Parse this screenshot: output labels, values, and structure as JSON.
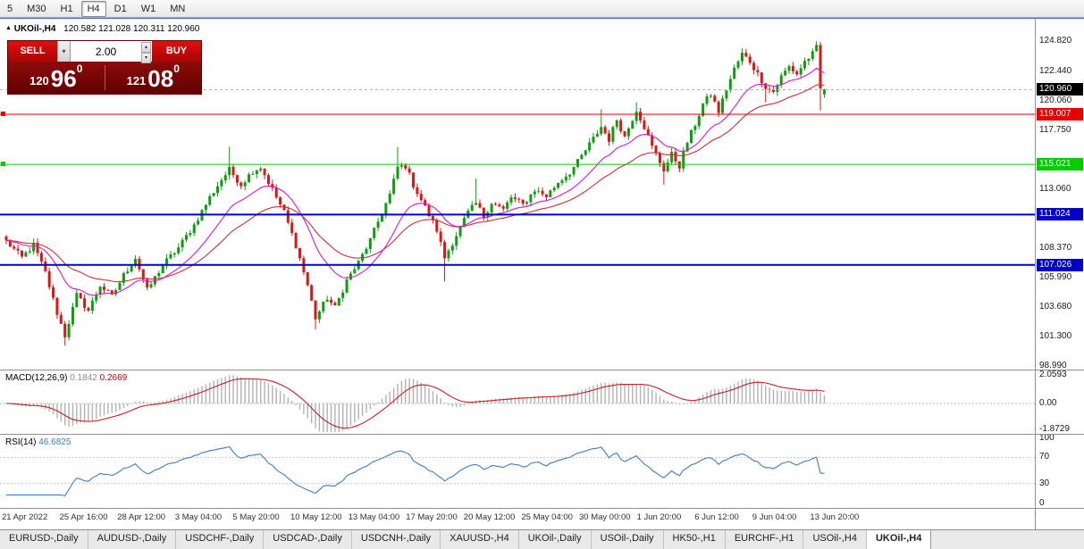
{
  "toolbar": {
    "timeframes": [
      "5",
      "M30",
      "H1",
      "H4",
      "D1",
      "W1",
      "MN"
    ],
    "active_timeframe": "H4"
  },
  "chart_header": {
    "symbol": "UKOil-,H4",
    "ohlc": "120.582 121.028 120.311 120.960"
  },
  "trade_panel": {
    "sell_label": "SELL",
    "buy_label": "BUY",
    "volume": "2.00",
    "bid": {
      "main": "120",
      "pips": "96",
      "point": "0"
    },
    "ask": {
      "main": "121",
      "pips": "08",
      "point": "0"
    }
  },
  "price_axis": {
    "ticks": [
      "124.820",
      "122.440",
      "120.060",
      "117.750",
      "113.060",
      "108.370",
      "105.990",
      "103.680",
      "101.300",
      "98.990"
    ],
    "tick_values": [
      124.82,
      122.44,
      120.06,
      117.75,
      113.06,
      108.37,
      105.99,
      103.68,
      101.3,
      98.99
    ],
    "current_price": "120.960",
    "current_value": 120.96
  },
  "hlines": [
    {
      "value": 119.007,
      "label": "119.007",
      "color": "#e60000",
      "width": 1,
      "marker": true
    },
    {
      "value": 115.021,
      "label": "115.021",
      "color": "#00cc00",
      "width": 1,
      "marker": true
    },
    {
      "value": 111.024,
      "label": "111.024",
      "color": "#0000c8",
      "width": 2,
      "marker": false
    },
    {
      "value": 107.026,
      "label": "107.026",
      "color": "#0000c8",
      "width": 2,
      "marker": false
    }
  ],
  "macd_panel": {
    "label": "MACD(12,26,9)",
    "value_main": "0.1842",
    "value_signal": "0.2669",
    "axis": [
      "2.0593",
      "0.00",
      "-1.8729"
    ],
    "axis_values": [
      2.0593,
      0,
      -1.8729
    ]
  },
  "rsi_panel": {
    "label": "RSI(14)",
    "value": "46.6825",
    "axis": [
      "100",
      "70",
      "30",
      "0"
    ],
    "axis_values": [
      100,
      70,
      30,
      0
    ],
    "levels": [
      70,
      30
    ]
  },
  "time_axis": [
    "21 Apr 2022",
    "25 Apr 16:00",
    "28 Apr 12:00",
    "3 May 04:00",
    "5 May 20:00",
    "10 May 12:00",
    "13 May 04:00",
    "17 May 20:00",
    "20 May 12:00",
    "25 May 04:00",
    "30 May 00:00",
    "1 Jun 20:00",
    "6 Jun 12:00",
    "9 Jun 04:00",
    "13 Jun 20:00"
  ],
  "tabs": {
    "items": [
      "EURUSD-,Daily",
      "AUDUSD-,Daily",
      "USDCHF-,Daily",
      "USDCAD-,Daily",
      "USDCNH-,Daily",
      "XAUUSD-,H4",
      "UKOil-,Daily",
      "USOil-,Daily",
      "HK50-,H1",
      "EURCHF-,H1",
      "USOil-,H4",
      "UKOil-,H4"
    ],
    "active": "UKOil-,H4"
  },
  "colors": {
    "bull": "#0f9d0f",
    "bear": "#e01414",
    "ma_fast": "#d816d8",
    "ma_slow": "#c83232",
    "macd_histogram": "#b2b2b2",
    "macd_signal": "#c22222",
    "rsi_line": "#3b7dc8",
    "current_price_badge": "#000000",
    "panel_red": "#7c0606",
    "button_red": "#d60e0e"
  },
  "chart_data": {
    "type": "candlestick",
    "symbol": "UKOil-",
    "timeframe": "H4",
    "visible_range": {
      "start": "21 Apr 2022",
      "end": "13 Jun 2022"
    },
    "price_range": [
      98.7,
      126.6
    ],
    "candle_count": 210,
    "last_ohlc": {
      "open": 120.582,
      "high": 121.028,
      "low": 120.311,
      "close": 120.96
    },
    "close_anchors": [
      [
        0,
        108.9
      ],
      [
        4,
        107.6
      ],
      [
        7,
        108.6
      ],
      [
        10,
        106.4
      ],
      [
        13,
        103.2
      ],
      [
        15,
        101.4
      ],
      [
        18,
        104.6
      ],
      [
        21,
        103.4
      ],
      [
        24,
        105.4
      ],
      [
        27,
        104.5
      ],
      [
        30,
        106.2
      ],
      [
        33,
        107.6
      ],
      [
        36,
        105.0
      ],
      [
        40,
        107.0
      ],
      [
        44,
        108.4
      ],
      [
        48,
        110.2
      ],
      [
        52,
        112.4
      ],
      [
        55,
        113.8
      ],
      [
        57,
        114.6
      ],
      [
        60,
        113.4
      ],
      [
        63,
        114.5
      ],
      [
        65,
        114.8
      ],
      [
        68,
        113.0
      ],
      [
        71,
        111.2
      ],
      [
        74,
        108.6
      ],
      [
        77,
        105.4
      ],
      [
        79,
        102.8
      ],
      [
        82,
        104.4
      ],
      [
        84,
        103.6
      ],
      [
        87,
        105.8
      ],
      [
        90,
        107.2
      ],
      [
        93,
        109.0
      ],
      [
        96,
        111.2
      ],
      [
        98,
        112.6
      ],
      [
        100,
        114.8
      ],
      [
        102,
        114.9
      ],
      [
        104,
        113.4
      ],
      [
        107,
        111.6
      ],
      [
        110,
        109.8
      ],
      [
        112,
        107.6
      ],
      [
        115,
        109.4
      ],
      [
        118,
        111.2
      ],
      [
        120,
        111.9
      ],
      [
        122,
        110.9
      ],
      [
        124,
        112.0
      ],
      [
        127,
        111.4
      ],
      [
        129,
        112.4
      ],
      [
        132,
        111.8
      ],
      [
        135,
        113.0
      ],
      [
        138,
        112.5
      ],
      [
        141,
        113.6
      ],
      [
        144,
        114.4
      ],
      [
        146,
        115.2
      ],
      [
        149,
        116.6
      ],
      [
        152,
        118.0
      ],
      [
        154,
        117.0
      ],
      [
        156,
        118.6
      ],
      [
        158,
        117.2
      ],
      [
        161,
        119.4
      ],
      [
        163,
        118.0
      ],
      [
        165,
        116.4
      ],
      [
        168,
        114.6
      ],
      [
        170,
        115.8
      ],
      [
        172,
        114.9
      ],
      [
        174,
        116.8
      ],
      [
        176,
        118.2
      ],
      [
        178,
        119.8
      ],
      [
        180,
        120.6
      ],
      [
        182,
        119.2
      ],
      [
        184,
        121.0
      ],
      [
        186,
        122.6
      ],
      [
        188,
        123.8
      ],
      [
        190,
        123.2
      ],
      [
        192,
        122.2
      ],
      [
        194,
        121.2
      ],
      [
        196,
        120.8
      ],
      [
        198,
        122.0
      ],
      [
        200,
        122.8
      ],
      [
        202,
        122.2
      ],
      [
        204,
        123.2
      ],
      [
        206,
        123.8
      ],
      [
        207,
        124.3
      ],
      [
        208,
        121.0
      ],
      [
        209,
        120.96
      ]
    ],
    "wick_events": [
      {
        "i": 15,
        "low": 100.6
      },
      {
        "i": 57,
        "high": 116.42
      },
      {
        "i": 79,
        "low": 101.9
      },
      {
        "i": 100,
        "high": 116.4
      },
      {
        "i": 112,
        "low": 105.7
      },
      {
        "i": 120,
        "high": 113.9
      },
      {
        "i": 152,
        "high": 119.4
      },
      {
        "i": 161,
        "high": 119.95
      },
      {
        "i": 168,
        "low": 113.4
      },
      {
        "i": 194,
        "low": 119.95
      },
      {
        "i": 207,
        "high": 124.82
      },
      {
        "i": 208,
        "low": 119.3
      }
    ],
    "indicators": {
      "moving_averages": [
        {
          "name": "fast-ma",
          "period": 16,
          "color": "#d816d8"
        },
        {
          "name": "slow-ma",
          "period": 34,
          "color": "#c83232"
        }
      ],
      "macd": {
        "fast": 12,
        "slow": 26,
        "signal": 9
      },
      "rsi": {
        "period": 14
      }
    }
  }
}
